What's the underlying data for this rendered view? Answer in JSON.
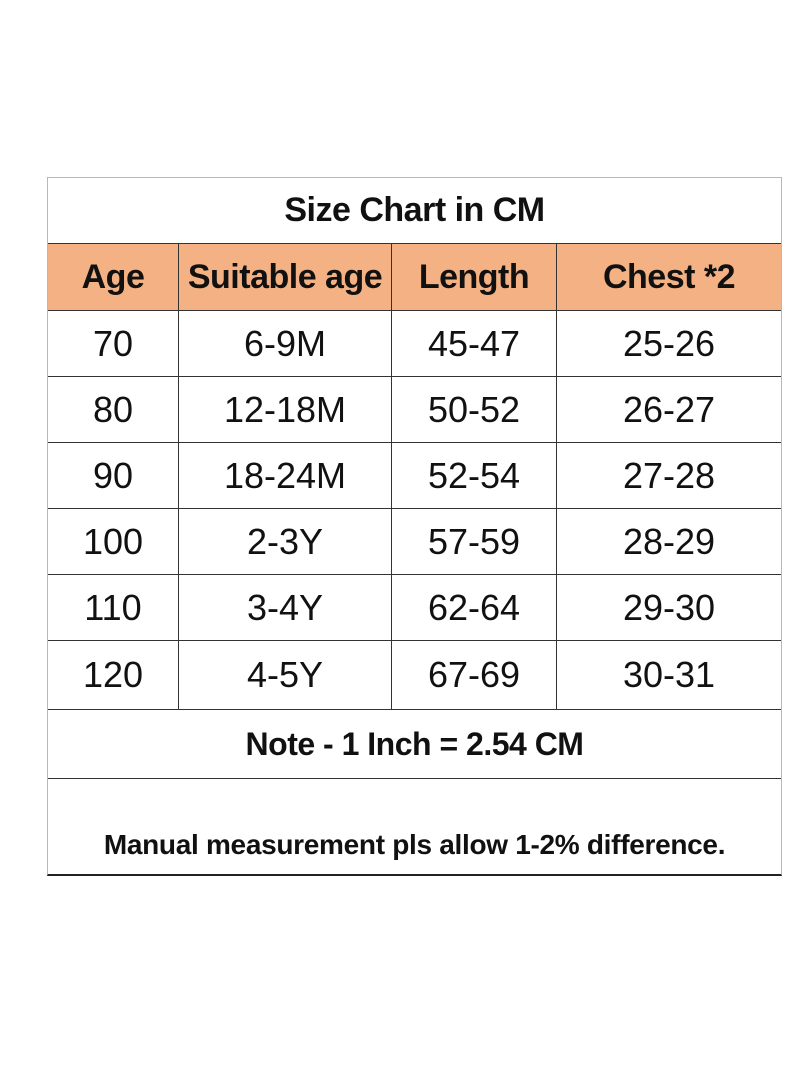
{
  "title": "Size Chart in CM",
  "header_bg": "#f4b183",
  "columns": [
    "Age",
    "Suitable age",
    "Length",
    "Chest *2"
  ],
  "rows": [
    [
      "70",
      "6-9M",
      "45-47",
      "25-26"
    ],
    [
      "80",
      "12-18M",
      "50-52",
      "26-27"
    ],
    [
      "90",
      "18-24M",
      "52-54",
      "27-28"
    ],
    [
      "100",
      "2-3Y",
      "57-59",
      "28-29"
    ],
    [
      "110",
      "3-4Y",
      "62-64",
      "29-30"
    ],
    [
      "120",
      "4-5Y",
      "67-69",
      "30-31"
    ]
  ],
  "note": "Note - 1 Inch = 2.54 CM",
  "disclaimer": "Manual measurement pls allow 1-2% difference."
}
